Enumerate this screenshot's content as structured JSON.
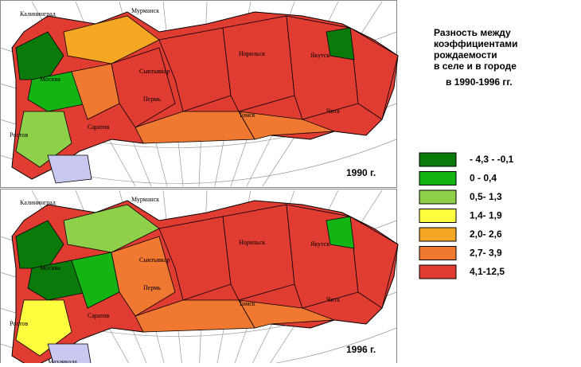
{
  "title_lines": [
    "Разность между",
    "коэффициентами",
    "рождаемости",
    "в селе и в городе"
  ],
  "period": "в 1990-1996 гг.",
  "legend": [
    {
      "label": "- 4,3 - -0,1",
      "color": "#0a7a0a"
    },
    {
      "label": "0  -  0,4",
      "color": "#14b414"
    },
    {
      "label": "0,5- 1,3",
      "color": "#8fd04a"
    },
    {
      "label": "1,4- 1,9",
      "color": "#ffff40"
    },
    {
      "label": "2,0- 2,6",
      "color": "#f5a623"
    },
    {
      "label": "2,7- 3,9",
      "color": "#f07830"
    },
    {
      "label": "4,1-12,5",
      "color": "#e03c32"
    }
  ],
  "maps": [
    {
      "year": "1990 г.",
      "cities": [
        "Калининград",
        "Мурманск",
        "Москва",
        "Сыктывкар",
        "Норильск",
        "Якутск",
        "Пермь",
        "Саратов",
        "Ростов",
        "Томск",
        "Чита"
      ]
    },
    {
      "year": "1996 г.",
      "cities": [
        "Калининград",
        "Мурманск",
        "Москва",
        "Сыктывкар",
        "Норильск",
        "Якутск",
        "Пермь",
        "Саратов",
        "Ростов",
        "Томск",
        "Чита",
        "Махачкала"
      ]
    }
  ]
}
